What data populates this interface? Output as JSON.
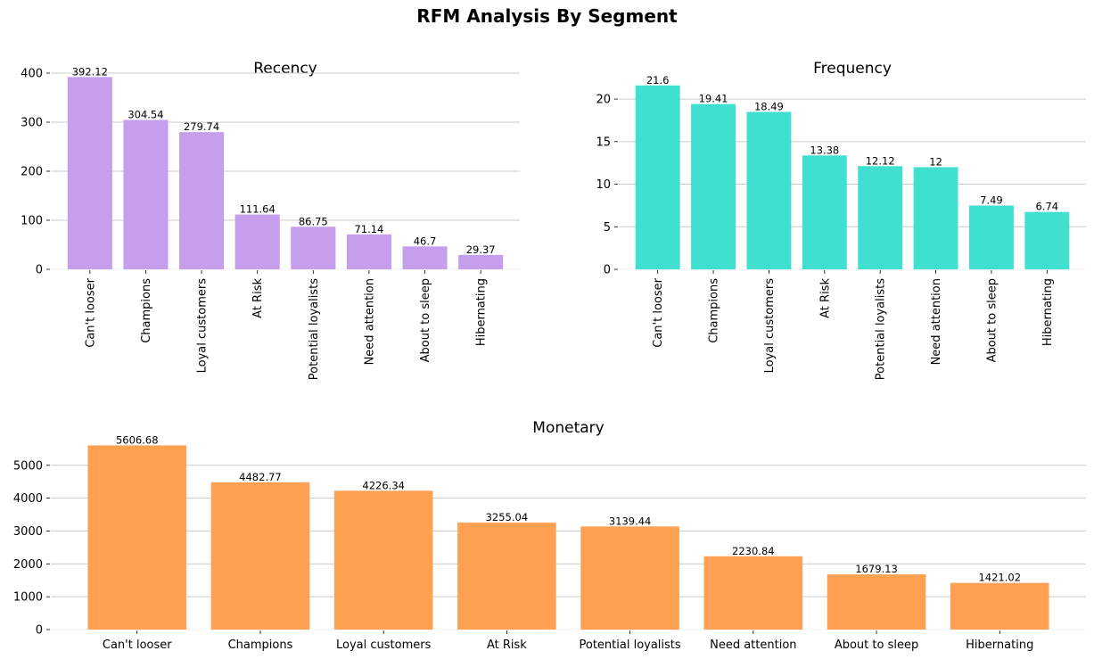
{
  "figure": {
    "title": "RFM Analysis By Segment"
  },
  "chart_data": [
    {
      "type": "bar",
      "title": "Recency",
      "categories": [
        "Can't looser",
        "Champions",
        "Loyal customers",
        "At Risk",
        "Potential loyalists",
        "Need attention",
        "About to sleep",
        "Hibernating"
      ],
      "values": [
        392.12,
        304.54,
        279.74,
        111.64,
        86.75,
        71.14,
        46.7,
        29.37
      ],
      "value_labels": [
        "392.12",
        "304.54",
        "279.74",
        "111.64",
        "86.75",
        "71.14",
        "46.7",
        "29.37"
      ],
      "ylim": [
        0,
        400
      ],
      "yticks": [
        0,
        100,
        200,
        300,
        400
      ],
      "xtick_rotation": "vertical",
      "grid": "y",
      "color": "#c59fec"
    },
    {
      "type": "bar",
      "title": "Frequency",
      "categories": [
        "Can't looser",
        "Champions",
        "Loyal customers",
        "At Risk",
        "Potential loyalists",
        "Need attention",
        "About to sleep",
        "Hibernating"
      ],
      "values": [
        21.6,
        19.41,
        18.49,
        13.38,
        12.12,
        12,
        7.49,
        6.74
      ],
      "value_labels": [
        "21.6",
        "19.41",
        "18.49",
        "13.38",
        "12.12",
        "12",
        "7.49",
        "6.74"
      ],
      "ylim": [
        0,
        22
      ],
      "yticks": [
        0,
        5,
        10,
        15,
        20
      ],
      "xtick_rotation": "vertical",
      "grid": "y",
      "color": "#40e0d0"
    },
    {
      "type": "bar",
      "title": "Monetary",
      "categories": [
        "Can't looser",
        "Champions",
        "Loyal customers",
        "At Risk",
        "Potential loyalists",
        "Need attention",
        "About to sleep",
        "Hibernating"
      ],
      "values": [
        5606.68,
        4482.77,
        4226.34,
        3255.04,
        3139.44,
        2230.84,
        1679.13,
        1421.02
      ],
      "value_labels": [
        "5606.68",
        "4482.77",
        "4226.34",
        "3255.04",
        "3139.44",
        "2230.84",
        "1679.13",
        "1421.02"
      ],
      "ylim": [
        0,
        5700
      ],
      "yticks": [
        0,
        1000,
        2000,
        3000,
        4000,
        5000
      ],
      "xtick_rotation": "horizontal",
      "grid": "y",
      "color": "#ffa052"
    }
  ]
}
